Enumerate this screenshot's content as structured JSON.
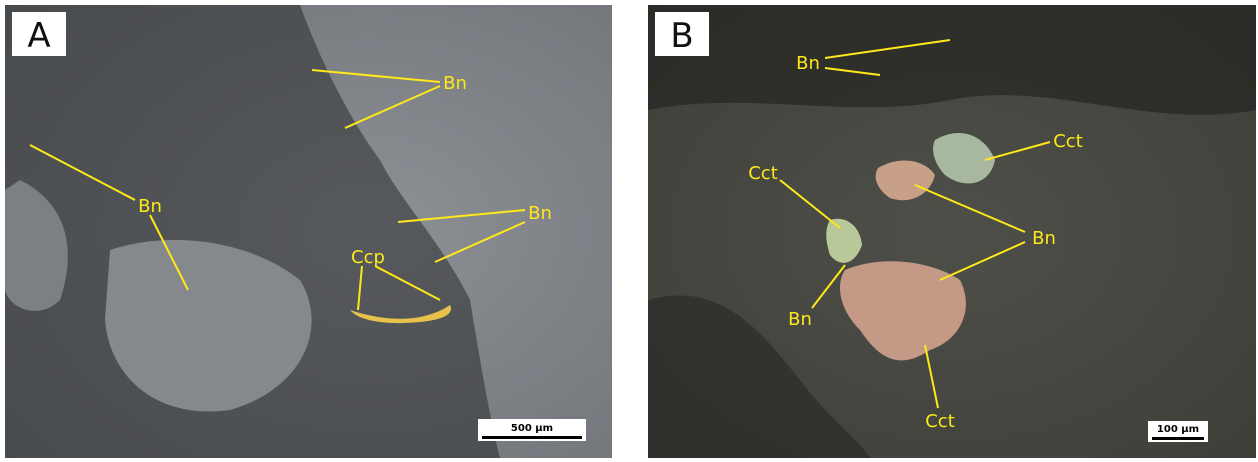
{
  "panels": [
    {
      "label": "A",
      "annotations": [
        "Bn",
        "Bn",
        "Bn",
        "Ccp"
      ],
      "scale_bar": "500 µm"
    },
    {
      "label": "B",
      "annotations": [
        "Bn",
        "Cct",
        "Cct",
        "Bn",
        "Bn",
        "Cct"
      ],
      "scale_bar": "100 µm"
    }
  ]
}
